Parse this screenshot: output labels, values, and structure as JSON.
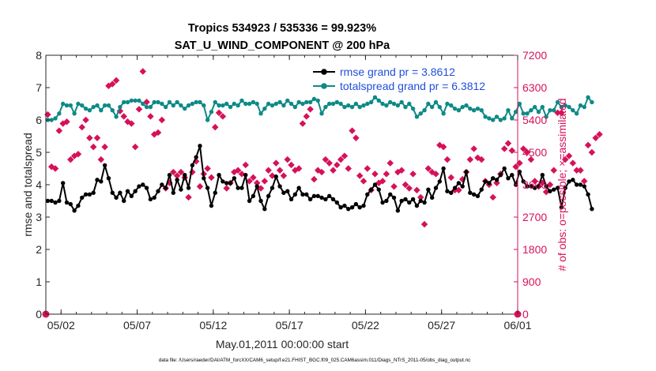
{
  "chart_data": {
    "type": "line",
    "title_line1": "Tropics 534923 / 535336 = 99.923%",
    "title_line2": "SAT_U_WIND_COMPONENT @ 200 hPa",
    "xlabel": "May.01,2011 00:00:00 start",
    "ylabel_left": "rmse and totalspread",
    "ylabel_right": "# of obs: o=possible; ×=assimilated",
    "xlim": [
      0,
      31
    ],
    "ylim_left": [
      0,
      8
    ],
    "ylim_right": [
      0,
      7200
    ],
    "x_ticks": [
      {
        "x": 1,
        "label": "05/02"
      },
      {
        "x": 6,
        "label": "05/07"
      },
      {
        "x": 11,
        "label": "05/12"
      },
      {
        "x": 16,
        "label": "05/17"
      },
      {
        "x": 21,
        "label": "05/22"
      },
      {
        "x": 26,
        "label": "05/27"
      },
      {
        "x": 31,
        "label": "06/01"
      }
    ],
    "y_ticks_left": [
      "0",
      "1",
      "2",
      "3",
      "4",
      "5",
      "6",
      "7",
      "8"
    ],
    "y_ticks_right": [
      "0",
      "900",
      "1800",
      "2700",
      "3600",
      "4500",
      "5400",
      "6300",
      "7200"
    ],
    "grid": false,
    "legend_position": "top-right",
    "series": [
      {
        "name": "rmse grand pr = 3.8612",
        "color": "#000000",
        "axis": "left",
        "x_start": 0.125,
        "x_step": 0.25,
        "values": [
          3.5,
          3.5,
          3.45,
          3.5,
          4.05,
          3.45,
          3.4,
          3.2,
          3.35,
          3.6,
          3.7,
          3.7,
          3.75,
          4.15,
          4.1,
          4.6,
          4.2,
          3.75,
          3.6,
          3.75,
          3.5,
          3.8,
          3.65,
          3.8,
          3.95,
          4.0,
          3.9,
          3.55,
          3.6,
          3.8,
          4.0,
          3.9,
          4.3,
          3.75,
          4.15,
          3.85,
          4.3,
          3.9,
          4.6,
          4.85,
          5.2,
          4.2,
          3.9,
          3.35,
          3.75,
          4.3,
          4.1,
          4.05,
          4.05,
          4.2,
          3.9,
          3.9,
          4.3,
          3.5,
          3.65,
          3.95,
          3.5,
          3.25,
          3.65,
          3.9,
          4.25,
          3.95,
          3.75,
          3.8,
          3.55,
          3.7,
          3.9,
          3.7,
          3.7,
          3.55,
          3.65,
          3.65,
          3.6,
          3.55,
          3.65,
          3.55,
          3.45,
          3.3,
          3.35,
          3.25,
          3.3,
          3.4,
          3.3,
          3.35,
          3.7,
          3.85,
          4.0,
          3.85,
          3.45,
          3.5,
          3.7,
          3.6,
          3.2,
          3.5,
          3.55,
          3.45,
          3.55,
          3.35,
          3.5,
          3.45,
          3.85,
          3.6,
          3.9,
          4.1,
          4.5,
          3.8,
          3.75,
          3.9,
          4.05,
          3.95,
          4.4,
          3.75,
          3.7,
          3.65,
          3.85,
          4.1,
          4.05,
          4.2,
          4.15,
          4.3,
          4.5,
          4.2,
          4.3,
          4.0,
          4.4,
          4.1,
          3.95,
          3.95,
          3.9,
          3.95,
          4.3,
          3.95,
          3.8,
          3.85,
          3.9,
          3.3,
          3.9,
          4.1,
          4.15,
          4.0,
          4.0,
          3.95,
          3.7,
          3.25
        ]
      },
      {
        "name": "totalspread grand pr = 6.3812",
        "color": "#0e8a87",
        "axis": "left",
        "x_start": 0.125,
        "x_step": 0.25,
        "values": [
          6.0,
          6.0,
          6.05,
          6.2,
          6.5,
          6.45,
          6.45,
          6.2,
          6.5,
          6.45,
          6.35,
          6.3,
          6.4,
          6.45,
          6.3,
          6.45,
          6.45,
          6.3,
          6.1,
          6.4,
          6.55,
          6.55,
          6.6,
          6.6,
          6.6,
          6.5,
          6.4,
          6.4,
          6.55,
          6.55,
          6.5,
          6.4,
          6.55,
          6.45,
          6.55,
          6.45,
          6.35,
          6.45,
          6.5,
          6.55,
          6.55,
          6.45,
          6.0,
          6.25,
          6.55,
          6.45,
          6.45,
          6.5,
          6.4,
          6.5,
          6.45,
          6.6,
          6.5,
          6.5,
          6.55,
          6.5,
          6.2,
          6.35,
          6.5,
          6.45,
          6.5,
          6.55,
          6.45,
          6.6,
          6.5,
          6.4,
          6.55,
          6.5,
          6.55,
          6.55,
          6.65,
          6.6,
          6.2,
          6.4,
          6.5,
          6.5,
          6.55,
          6.5,
          6.4,
          6.45,
          6.4,
          6.5,
          6.4,
          6.45,
          6.5,
          6.55,
          6.7,
          6.6,
          6.5,
          6.45,
          6.55,
          6.5,
          6.45,
          6.55,
          6.4,
          6.5,
          6.35,
          6.1,
          6.2,
          6.3,
          6.5,
          6.4,
          6.55,
          6.4,
          6.2,
          6.5,
          6.45,
          6.35,
          6.3,
          6.4,
          6.45,
          6.35,
          6.3,
          6.35,
          6.3,
          6.1,
          6.05,
          6.0,
          6.1,
          6.0,
          6.05,
          6.3,
          6.05,
          6.25,
          6.5,
          6.2,
          6.2,
          6.3,
          6.4,
          6.25,
          6.4,
          6.1,
          6.3,
          6.3,
          6.55,
          6.4,
          6.45,
          6.4,
          6.3,
          6.2,
          6.45,
          6.4,
          6.7,
          6.55
        ]
      },
      {
        "name": "assimilated",
        "color": "#d6115a",
        "axis": "right",
        "marker": "x",
        "x_start": 0.125,
        "x_step": 0.25,
        "values": [
          5550,
          4100,
          4050,
          5100,
          5300,
          5350,
          4300,
          4400,
          4450,
          5200,
          5400,
          4900,
          4650,
          4900,
          4300,
          4650,
          6350,
          6400,
          6500,
          5650,
          5500,
          5350,
          5300,
          4650,
          5700,
          6750,
          5900,
          5500,
          5000,
          5050,
          5400,
          3500,
          3650,
          3950,
          3850,
          3950,
          3800,
          3250,
          3950,
          4250,
          3550,
          3900,
          4050,
          3800,
          5200,
          5600,
          5500,
          3500,
          3650,
          3950,
          4000,
          3900,
          4150,
          3700,
          3800,
          3650,
          3500,
          3700,
          4000,
          3850,
          4200,
          4000,
          3850,
          4300,
          4150,
          4000,
          4050,
          5300,
          5500,
          5700,
          3750,
          4000,
          3950,
          4300,
          4200,
          4000,
          4150,
          4300,
          4400,
          4050,
          5100,
          4900,
          3850,
          3700,
          4050,
          3450,
          3900,
          3650,
          3700,
          3900,
          4200,
          3550,
          3950,
          4000,
          3600,
          3500,
          3900,
          3450,
          3250,
          2500,
          4050,
          3950,
          3900,
          4700,
          4650,
          4300,
          3800,
          3450,
          3450,
          3750,
          3950,
          4300,
          4600,
          4350,
          4300,
          3700,
          3600,
          3250,
          3650,
          3900,
          4600,
          4750,
          4550,
          4100,
          4200,
          4600,
          4500,
          4300,
          3700,
          3550,
          3650,
          3400,
          3600,
          4000,
          5600,
          5600,
          4300,
          4400,
          4200,
          4000,
          4000,
          3700,
          4700,
          4500,
          4900,
          5000
        ]
      },
      {
        "name": "possible",
        "color": "#d6115a",
        "axis": "right",
        "marker": "o",
        "x": [
          0,
          31
        ],
        "values": [
          0,
          0
        ]
      }
    ]
  },
  "footer": {
    "data_file": "data file: /Users/raeder/DAI/ATM_forcXX/CAM6_setup/f.e21.FHIST_BGC.f09_025.CAM6assim.011/Diags_NTrS_2011-05/obs_diag_output.nc"
  }
}
